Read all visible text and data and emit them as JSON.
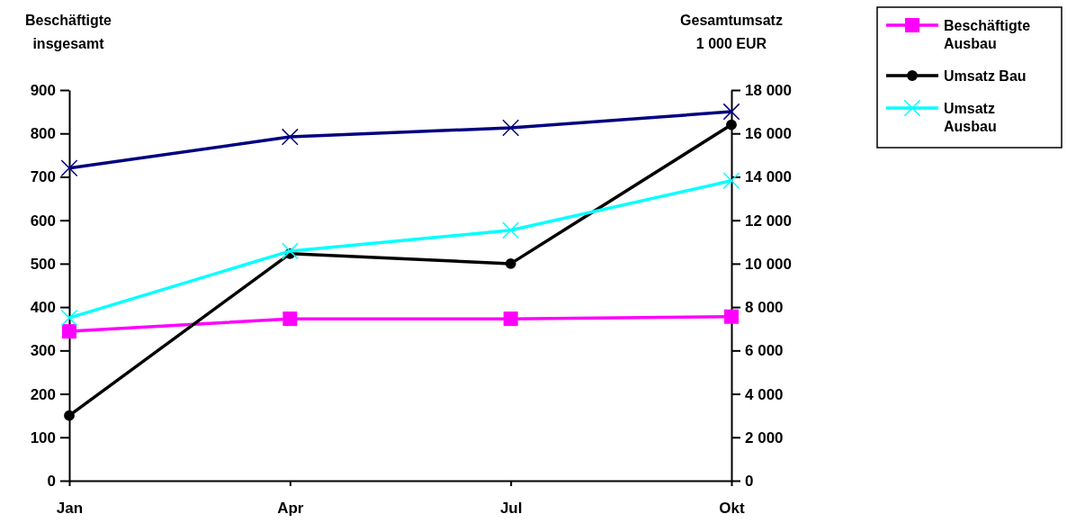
{
  "chart_data": {
    "type": "line",
    "categories": [
      "Jan",
      "Apr",
      "Jul",
      "Okt"
    ],
    "ylabel": "Beschäftigte\ninsgesamt",
    "y2label": "Gesamtumsatz\n1 000 EUR",
    "ylim": [
      0,
      900
    ],
    "yticks": [
      0,
      100,
      200,
      300,
      400,
      500,
      600,
      700,
      800,
      900
    ],
    "y2lim": [
      0,
      18000
    ],
    "y2ticks": [
      0,
      {
        "value": 2000,
        "label": "2 000"
      },
      {
        "value": 4000,
        "label": "4 000"
      },
      {
        "value": 6000,
        "label": "6 000"
      },
      {
        "value": 8000,
        "label": "8 000"
      },
      {
        "value": 10000,
        "label": "10 000"
      },
      {
        "value": 12000,
        "label": "12 000"
      },
      {
        "value": 14000,
        "label": "14 000"
      },
      {
        "value": 16000,
        "label": "16 000"
      },
      {
        "value": 18000,
        "label": "18 000"
      }
    ],
    "legend": "top right",
    "grid": false,
    "series": [
      {
        "color": "#000080",
        "marker": "cross",
        "values": [
          720,
          792,
          813,
          850
        ]
      },
      {
        "name": "Beschäftigte Ausbau",
        "color": "#ff00ff",
        "marker": "square",
        "values": [
          344,
          373,
          373,
          378
        ]
      },
      {
        "name": "Umsatz Bau",
        "color": "#000000",
        "marker": "circle",
        "axis": "y2",
        "values": [
          3000,
          10460,
          10000,
          16400
        ]
      },
      {
        "name": "Umsatz Ausbau",
        "color": "#00ffff",
        "marker": "cross",
        "axis": "y2",
        "values": [
          7500,
          10580,
          11540,
          13820
        ]
      }
    ]
  }
}
